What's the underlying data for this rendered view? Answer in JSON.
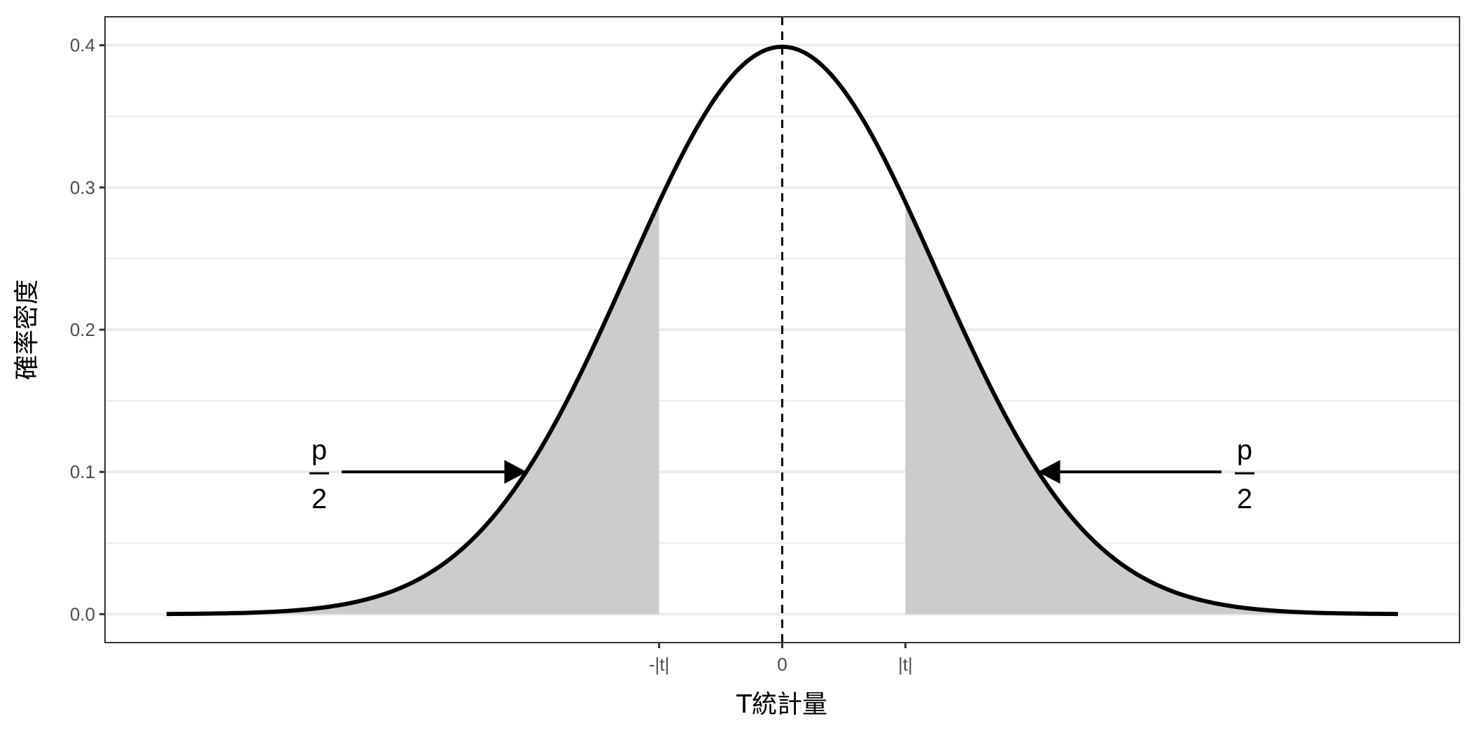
{
  "chart_data": {
    "type": "area",
    "distribution": "standard normal density",
    "xlabel": "T統計量",
    "ylabel": "確率密度",
    "xlim": [
      -4,
      4
    ],
    "ylim": [
      0,
      0.4
    ],
    "t_value": 0.8,
    "x_ticks": [
      {
        "value": -0.8,
        "label": "-|t|"
      },
      {
        "value": 0,
        "label": "0"
      },
      {
        "value": 0.8,
        "label": "|t|"
      }
    ],
    "y_ticks": [
      {
        "value": 0.0,
        "label": "0.0"
      },
      {
        "value": 0.1,
        "label": "0.1"
      },
      {
        "value": 0.2,
        "label": "0.2"
      },
      {
        "value": 0.3,
        "label": "0.3"
      },
      {
        "value": 0.4,
        "label": "0.4"
      }
    ],
    "vline": {
      "x": 0,
      "style": "dashed"
    },
    "shaded_regions": [
      {
        "from": -4,
        "to": -0.8
      },
      {
        "from": 0.8,
        "to": 4
      }
    ],
    "annotations": [
      {
        "numerator": "p",
        "denominator": "2",
        "arrow_to": [
          -1.66,
          0.1
        ],
        "side": "left"
      },
      {
        "numerator": "p",
        "denominator": "2",
        "arrow_to": [
          1.66,
          0.1
        ],
        "side": "right"
      }
    ],
    "grid": true,
    "colors": {
      "curve": "#000000",
      "shade": "#cccccc",
      "grid": "#ebebeb"
    }
  }
}
